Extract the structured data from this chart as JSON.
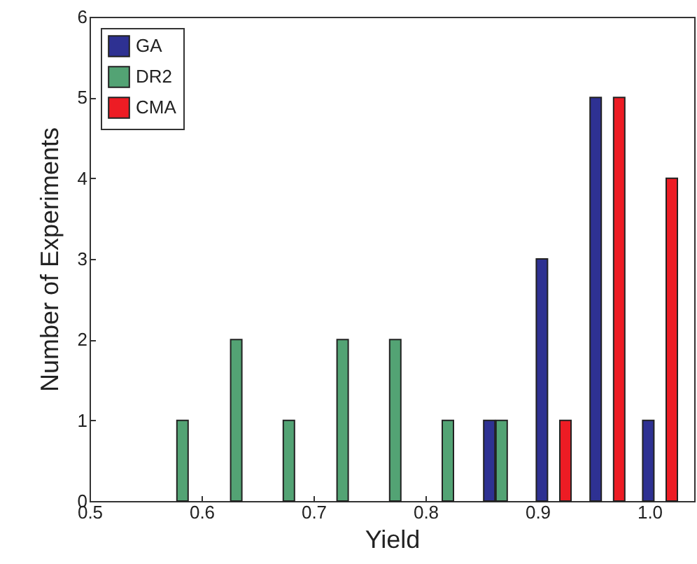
{
  "chart_data": {
    "type": "bar",
    "xlabel": "Yield",
    "ylabel": "Number of Experiments",
    "xlim": [
      0.5,
      1.04
    ],
    "xticks": [
      0.5,
      0.6,
      0.7,
      0.8,
      0.9,
      {
        "value": 1,
        "label": "1.0"
      }
    ],
    "ylim": [
      0,
      6
    ],
    "yticks": [
      0,
      1,
      2,
      3,
      4,
      5,
      6
    ],
    "grid": false,
    "legend": "top left",
    "series": [
      {
        "name": "GA",
        "color": "#2e3192",
        "x": [
          0.857,
          0.904,
          0.952,
          0.999
        ],
        "values": [
          1,
          3,
          5,
          1
        ]
      },
      {
        "name": "DR2",
        "color": "#53a374",
        "x": [
          0.583,
          0.631,
          0.678,
          0.726,
          0.773,
          0.82,
          0.868
        ],
        "values": [
          1,
          2,
          1,
          2,
          2,
          1,
          1
        ]
      },
      {
        "name": "CMA",
        "color": "#ed1c24",
        "x": [
          0.925,
          0.973,
          1.02
        ],
        "values": [
          1,
          5,
          4
        ]
      }
    ]
  }
}
